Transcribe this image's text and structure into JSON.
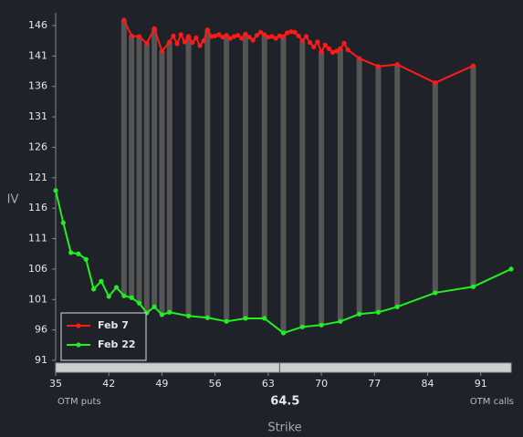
{
  "chart_data": {
    "type": "line",
    "y_label": "IV",
    "x_label": "Strike",
    "left_note": "OTM puts",
    "right_note": "OTM calls",
    "center_strike": 64.5,
    "xlim": [
      35,
      95
    ],
    "xticks": [
      35,
      42,
      49,
      56,
      63,
      70,
      77,
      84,
      91
    ],
    "ylim": [
      91,
      146
    ],
    "yticks": [
      91,
      96,
      101,
      106,
      111,
      116,
      121,
      126,
      131,
      136,
      141,
      146
    ],
    "legend": "lower left",
    "bar_color": "#555555",
    "series": [
      {
        "name": "Feb 7",
        "color": "#ff1a1a",
        "x": [
          44,
          45,
          46,
          47,
          48,
          49,
          50,
          50.5,
          51,
          51.5,
          52,
          52.5,
          53,
          53.5,
          54,
          54.5,
          55,
          55.5,
          56,
          56.5,
          57,
          57.5,
          58,
          58.5,
          59,
          59.5,
          60,
          60.5,
          61,
          61.5,
          62,
          62.5,
          63,
          63.5,
          64,
          64.5,
          65,
          65.5,
          66,
          66.5,
          67,
          67.5,
          68,
          68.5,
          69,
          69.5,
          70,
          70.5,
          71,
          71.5,
          72,
          72.5,
          73,
          73.5,
          75,
          77.5,
          80,
          85,
          90
        ],
        "values": [
          146.9,
          144.3,
          144.2,
          143.1,
          145.5,
          141.8,
          143.3,
          144.3,
          143,
          144.5,
          143.3,
          144.2,
          143.2,
          144,
          142.7,
          143.5,
          145.3,
          144.2,
          144.3,
          144.5,
          144.1,
          144.4,
          143.9,
          144.2,
          144.4,
          143.9,
          144.6,
          144.1,
          143.6,
          144.4,
          144.9,
          144.5,
          144.1,
          144.2,
          143.9,
          144.3,
          144.2,
          144.8,
          145,
          144.9,
          144.3,
          143.5,
          144.2,
          143.2,
          142.5,
          143.3,
          141.7,
          142.8,
          142.2,
          141.6,
          141.8,
          142.2,
          143.1,
          142,
          140.6,
          139.3,
          139.6,
          136.6,
          139.4
        ]
      },
      {
        "name": "Feb 22",
        "color": "#22ee22",
        "x": [
          35,
          36,
          37,
          38,
          39,
          40,
          41,
          42,
          43,
          44,
          45,
          46,
          47,
          48,
          49,
          50,
          52.5,
          55,
          57.5,
          60,
          62.5,
          65,
          67.5,
          70,
          72.5,
          75,
          77.5,
          80,
          85,
          90,
          95
        ],
        "values": [
          118.9,
          113.6,
          108.7,
          108.5,
          107.6,
          102.7,
          104,
          101.5,
          103,
          101.6,
          101.3,
          100.4,
          98.8,
          99.8,
          98.5,
          98.9,
          98.3,
          98,
          97.4,
          97.9,
          97.9,
          95.5,
          96.5,
          96.8,
          97.4,
          98.6,
          98.9,
          99.8,
          102.1,
          103.1,
          106
        ]
      }
    ]
  }
}
